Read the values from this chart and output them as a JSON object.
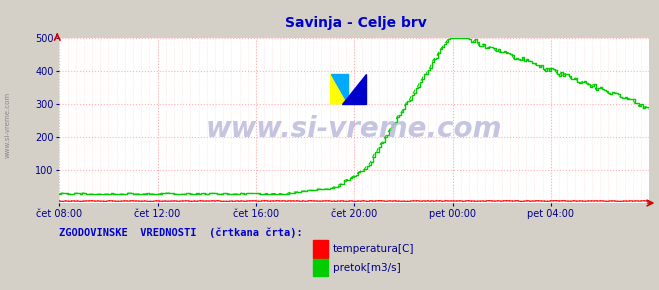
{
  "title": "Savinja - Celje brv",
  "title_color": "#0000cc",
  "bg_color": "#d4d0c8",
  "plot_bg_color": "#ffffff",
  "xlabel_ticks": [
    "čet 08:00",
    "čet 12:00",
    "čet 16:00",
    "čet 20:00",
    "pet 00:00",
    "pet 04:00"
  ],
  "xlim": [
    0,
    288
  ],
  "ylim": [
    0,
    500
  ],
  "yticks": [
    100,
    200,
    300,
    400,
    500
  ],
  "grid_color": "#ffb0b0",
  "flow_color": "#00cc00",
  "temp_color": "#ff0000",
  "hist_flow_color": "#00cc00",
  "hist_temp_color": "#ff0000",
  "watermark": "www.si-vreme.com",
  "watermark_color": "#bbbbdd",
  "legend_title": "ZGODOVINSKE  VREDNOSTI  (črtkana črta):",
  "legend_title_color": "#0000cc",
  "legend_items": [
    "temperatura[C]",
    "pretok[m3/s]"
  ],
  "legend_colors": [
    "#ff0000",
    "#00cc00"
  ],
  "tick_label_color": "#000088",
  "arrow_color": "#cc0000"
}
